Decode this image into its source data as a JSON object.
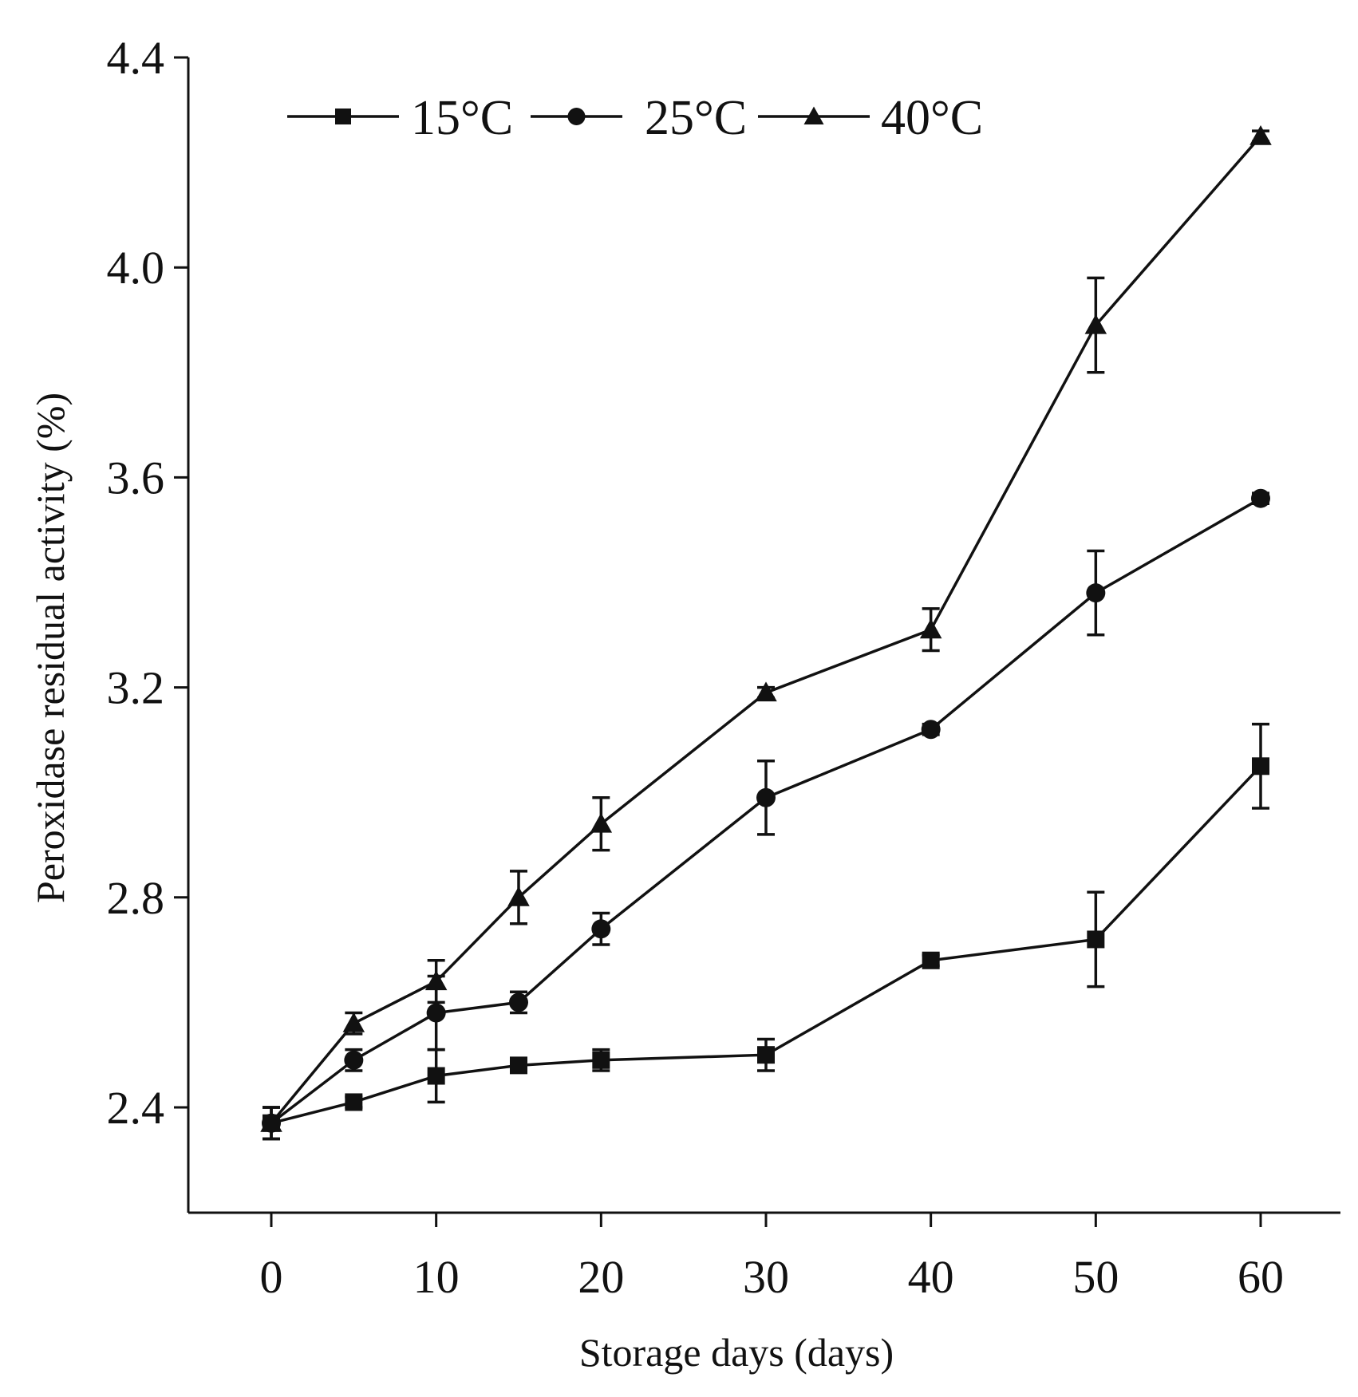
{
  "chart_data": {
    "type": "line",
    "xlabel": "Storage days (days)",
    "ylabel": "Peroxidase residual activity (%)",
    "xlim": [
      -5,
      65
    ],
    "ylim": [
      2.2,
      4.4
    ],
    "x_ticks": [
      0,
      10,
      20,
      30,
      40,
      50,
      60
    ],
    "y_ticks": [
      2.4,
      2.8,
      3.2,
      3.6,
      4.0,
      4.4
    ],
    "y_tick_labels": [
      "2.4",
      "2.8",
      "3.2",
      "3.6",
      "4.0",
      "4.4"
    ],
    "x": [
      0,
      5,
      10,
      15,
      20,
      30,
      40,
      50,
      60
    ],
    "legend_position": "top-left",
    "series": [
      {
        "name": "15°C",
        "marker": "square",
        "values": [
          2.37,
          2.41,
          2.46,
          2.48,
          2.49,
          2.5,
          2.68,
          2.72,
          3.05
        ],
        "errors": [
          0.03,
          0.01,
          0.05,
          0.01,
          0.02,
          0.03,
          0.01,
          0.09,
          0.08
        ]
      },
      {
        "name": "25°C",
        "marker": "circle",
        "values": [
          2.37,
          2.49,
          2.58,
          2.6,
          2.74,
          2.99,
          3.12,
          3.38,
          3.56
        ],
        "errors": [
          0.03,
          0.02,
          0.07,
          0.02,
          0.03,
          0.07,
          0.01,
          0.08,
          0.01
        ]
      },
      {
        "name": "40°C",
        "marker": "triangle",
        "values": [
          2.37,
          2.56,
          2.64,
          2.8,
          2.94,
          3.19,
          3.31,
          3.89,
          4.25
        ],
        "errors": [
          0.03,
          0.02,
          0.04,
          0.05,
          0.05,
          0.01,
          0.04,
          0.09,
          0.01
        ]
      }
    ]
  }
}
